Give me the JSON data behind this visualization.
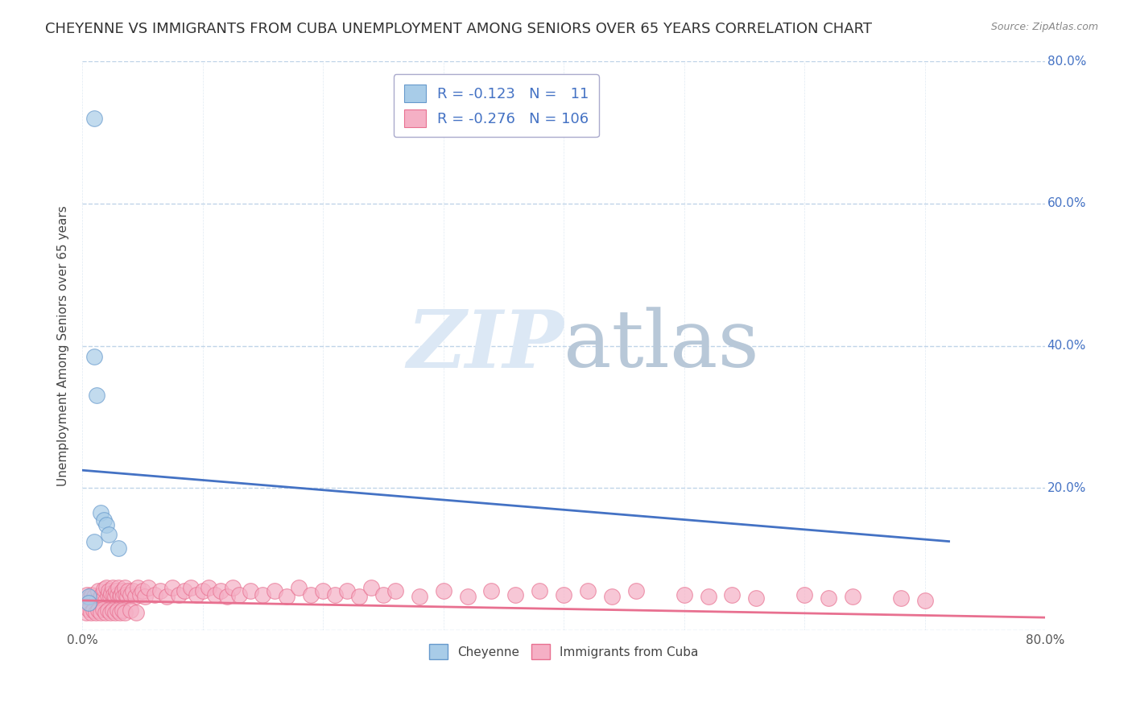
{
  "title": "CHEYENNE VS IMMIGRANTS FROM CUBA UNEMPLOYMENT AMONG SENIORS OVER 65 YEARS CORRELATION CHART",
  "source": "Source: ZipAtlas.com",
  "ylabel": "Unemployment Among Seniors over 65 years",
  "xlim": [
    0,
    0.8
  ],
  "ylim": [
    0,
    0.8
  ],
  "xticks": [
    0.0,
    0.1,
    0.2,
    0.3,
    0.4,
    0.5,
    0.6,
    0.7,
    0.8
  ],
  "yticks": [
    0.0,
    0.2,
    0.4,
    0.6,
    0.8
  ],
  "xtick_labels_bottom": [
    "0.0%",
    "",
    "",
    "",
    "",
    "",
    "",
    "",
    "80.0%"
  ],
  "ytick_labels_right": [
    "",
    "20.0%",
    "40.0%",
    "60.0%",
    "80.0%"
  ],
  "blue_color": "#a8cce8",
  "pink_color": "#f5b0c5",
  "blue_edge_color": "#6699cc",
  "pink_edge_color": "#e87090",
  "blue_line_color": "#4472c4",
  "pink_line_color": "#e87090",
  "watermark_color": "#dce8f5",
  "legend_R_blue": "-0.123",
  "legend_N_blue": "11",
  "legend_R_pink": "-0.276",
  "legend_N_pink": "106",
  "legend_label_blue": "Cheyenne",
  "legend_label_pink": "Immigrants from Cuba",
  "blue_scatter_x": [
    0.01,
    0.01,
    0.012,
    0.015,
    0.018,
    0.02,
    0.022,
    0.01,
    0.005,
    0.03,
    0.005
  ],
  "blue_scatter_y": [
    0.72,
    0.385,
    0.33,
    0.165,
    0.155,
    0.148,
    0.135,
    0.125,
    0.048,
    0.115,
    0.038
  ],
  "blue_trend_x": [
    0.0,
    0.72
  ],
  "blue_trend_y": [
    0.225,
    0.125
  ],
  "pink_scatter_x": [
    0.002,
    0.004,
    0.005,
    0.006,
    0.008,
    0.01,
    0.012,
    0.013,
    0.015,
    0.016,
    0.017,
    0.018,
    0.019,
    0.02,
    0.021,
    0.022,
    0.023,
    0.024,
    0.025,
    0.026,
    0.027,
    0.028,
    0.029,
    0.03,
    0.031,
    0.032,
    0.033,
    0.034,
    0.035,
    0.036,
    0.037,
    0.038,
    0.04,
    0.042,
    0.044,
    0.046,
    0.048,
    0.05,
    0.052,
    0.055,
    0.06,
    0.065,
    0.07,
    0.075,
    0.08,
    0.085,
    0.09,
    0.095,
    0.1,
    0.105,
    0.11,
    0.115,
    0.12,
    0.125,
    0.13,
    0.14,
    0.15,
    0.16,
    0.17,
    0.18,
    0.19,
    0.2,
    0.21,
    0.22,
    0.23,
    0.24,
    0.25,
    0.26,
    0.28,
    0.3,
    0.32,
    0.34,
    0.36,
    0.38,
    0.4,
    0.42,
    0.44,
    0.46,
    0.5,
    0.52,
    0.54,
    0.56,
    0.6,
    0.62,
    0.64,
    0.68,
    0.7,
    0.003,
    0.005,
    0.007,
    0.009,
    0.011,
    0.013,
    0.015,
    0.017,
    0.019,
    0.021,
    0.023,
    0.025,
    0.027,
    0.029,
    0.031,
    0.033,
    0.035,
    0.04,
    0.045
  ],
  "pink_scatter_y": [
    0.04,
    0.05,
    0.038,
    0.045,
    0.05,
    0.048,
    0.042,
    0.055,
    0.046,
    0.05,
    0.044,
    0.058,
    0.042,
    0.06,
    0.05,
    0.055,
    0.048,
    0.052,
    0.06,
    0.05,
    0.048,
    0.055,
    0.05,
    0.06,
    0.048,
    0.05,
    0.055,
    0.048,
    0.06,
    0.05,
    0.048,
    0.055,
    0.05,
    0.055,
    0.048,
    0.06,
    0.05,
    0.055,
    0.048,
    0.06,
    0.05,
    0.055,
    0.048,
    0.06,
    0.05,
    0.055,
    0.06,
    0.05,
    0.055,
    0.06,
    0.05,
    0.055,
    0.048,
    0.06,
    0.05,
    0.055,
    0.05,
    0.055,
    0.048,
    0.06,
    0.05,
    0.055,
    0.05,
    0.055,
    0.048,
    0.06,
    0.05,
    0.055,
    0.048,
    0.055,
    0.048,
    0.055,
    0.05,
    0.055,
    0.05,
    0.055,
    0.048,
    0.055,
    0.05,
    0.048,
    0.05,
    0.045,
    0.05,
    0.045,
    0.048,
    0.045,
    0.042,
    0.025,
    0.03,
    0.025,
    0.028,
    0.025,
    0.028,
    0.025,
    0.03,
    0.025,
    0.028,
    0.025,
    0.028,
    0.025,
    0.028,
    0.025,
    0.028,
    0.025,
    0.028,
    0.025
  ],
  "pink_trend_x": [
    0.0,
    0.8
  ],
  "pink_trend_y": [
    0.042,
    0.018
  ],
  "background_color": "#ffffff",
  "grid_color": "#c0d4e8",
  "title_fontsize": 13,
  "axis_label_fontsize": 11,
  "tick_fontsize": 11,
  "legend_fontsize": 13
}
